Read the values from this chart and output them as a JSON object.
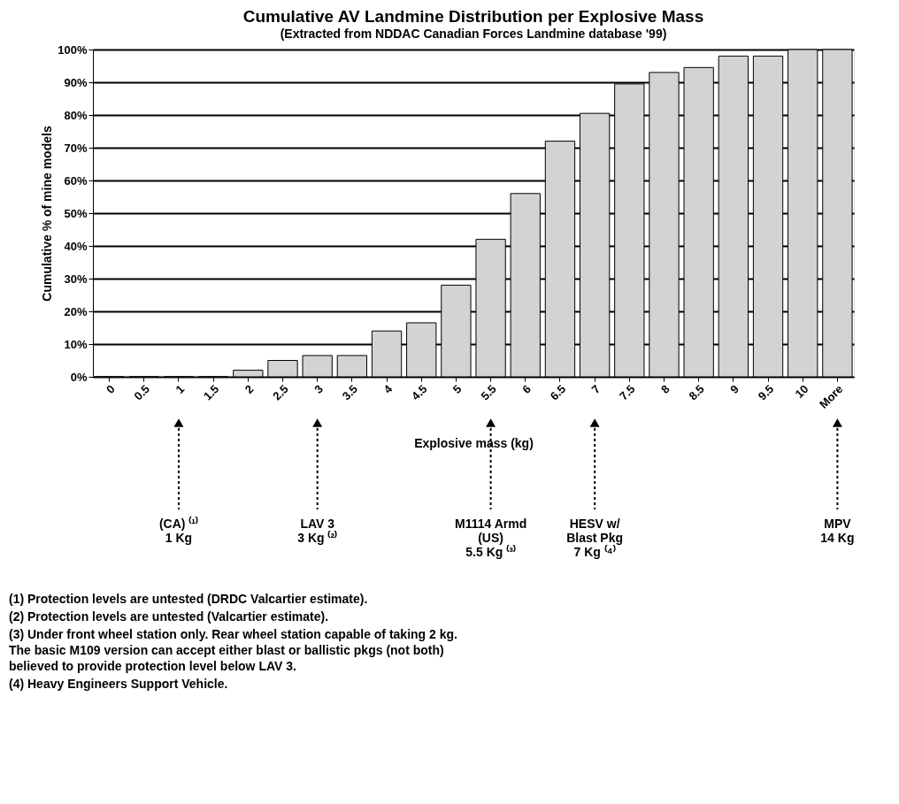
{
  "chart_data": {
    "type": "bar",
    "title": "Cumulative AV Landmine Distribution per Explosive Mass",
    "subtitle": "(Extracted from NDDAC Canadian Forces Landmine database '99)",
    "xlabel": "Explosive mass (kg)",
    "ylabel": "Cumulative % of mine models",
    "categories": [
      "0",
      "0.5",
      "1",
      "1.5",
      "2",
      "2.5",
      "3",
      "3.5",
      "4",
      "4.5",
      "5",
      "5.5",
      "6",
      "6.5",
      "7",
      "7.5",
      "8",
      "8.5",
      "9",
      "9.5",
      "10",
      "More"
    ],
    "values": [
      0,
      0,
      0,
      0,
      2,
      5,
      6.5,
      6.5,
      14,
      16.5,
      28,
      42,
      56,
      72,
      80.5,
      89.5,
      93,
      94.5,
      98,
      98,
      100,
      100
    ],
    "color": "#d3d3d3",
    "ylim": [
      0,
      100
    ],
    "yticks": [
      {
        "value": 0,
        "label": "0%"
      },
      {
        "value": 10,
        "label": "10%"
      },
      {
        "value": 20,
        "label": "20%"
      },
      {
        "value": 30,
        "label": "30%"
      },
      {
        "value": 40,
        "label": "40%"
      },
      {
        "value": 50,
        "label": "50%"
      },
      {
        "value": 60,
        "label": "60%"
      },
      {
        "value": 70,
        "label": "70%"
      },
      {
        "value": 80,
        "label": "80%"
      },
      {
        "value": 90,
        "label": "90%"
      },
      {
        "value": 100,
        "label": "100%"
      }
    ],
    "grid": "y",
    "annotations": [
      {
        "text": "(CA) ⁽¹⁾\n1 Kg",
        "x": "1"
      },
      {
        "text": "LAV 3\n3 Kg ⁽²⁾",
        "x": "3"
      },
      {
        "text": "M1114 Armd\n(US)\n5.5 Kg ⁽³⁾",
        "x": "5.5"
      },
      {
        "text": "HESV w/\nBlast Pkg\n7 Kg ⁽⁴⁾",
        "x": "7"
      },
      {
        "text": "MPV\n14 Kg",
        "x": "More"
      },
      "(1)    Protection levels are untested (DRDC Valcartier estimate).",
      "(2)    Protection levels are untested (Valcartier estimate).",
      "(3)    Under front wheel station only. Rear wheel station capable of taking 2 kg.\n         The basic M109 version can accept either blast or ballistic pkgs (not both)\n         believed to provide protection level below LAV 3.",
      "(4)    Heavy Engineers Support Vehicle."
    ]
  }
}
